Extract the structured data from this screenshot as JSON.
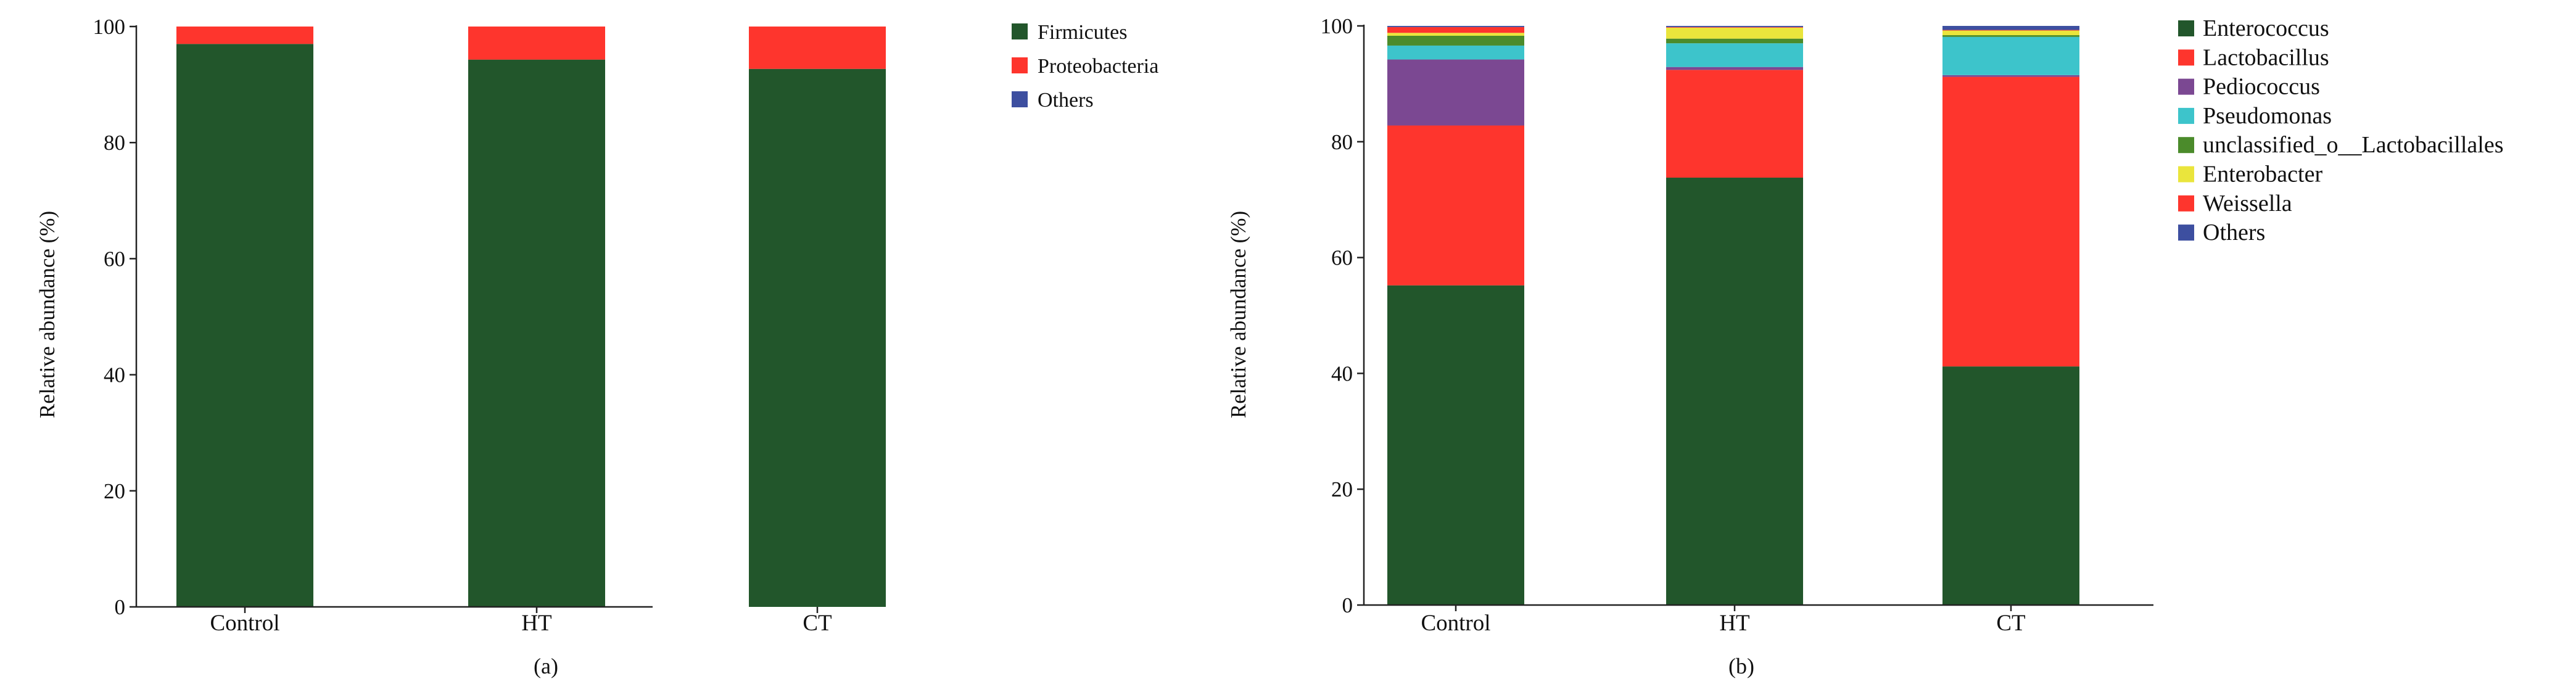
{
  "chart_data": [
    {
      "type": "bar",
      "stacked": true,
      "panel_label": "(a)",
      "title": "",
      "xlabel": "",
      "ylabel": "Relative abundance (%)",
      "ylim": [
        0,
        100
      ],
      "yticks": [
        0,
        20,
        40,
        60,
        80,
        100
      ],
      "categories": [
        "Control",
        "HT",
        "CT"
      ],
      "legend_position": "top-right",
      "series": [
        {
          "name": "Firmicutes",
          "color": "#22562b",
          "values": [
            97.0,
            94.3,
            92.7
          ]
        },
        {
          "name": "Proteobacteria",
          "color": "#fe352d",
          "values": [
            3.0,
            5.7,
            7.3
          ]
        },
        {
          "name": "Others",
          "color": "#3d4fa0",
          "values": [
            0.0,
            0.0,
            0.0
          ]
        }
      ]
    },
    {
      "type": "bar",
      "stacked": true,
      "panel_label": "(b)",
      "title": "",
      "xlabel": "",
      "ylabel": "Relative abundance (%)",
      "ylim": [
        0,
        100
      ],
      "yticks": [
        0,
        20,
        40,
        60,
        80,
        100
      ],
      "categories": [
        "Control",
        "HT",
        "CT"
      ],
      "legend_position": "top-right",
      "series": [
        {
          "name": "Enterococcus",
          "color": "#22562b",
          "values": [
            55.2,
            73.8,
            41.2
          ]
        },
        {
          "name": "Lactobacillus",
          "color": "#fe352d",
          "values": [
            27.6,
            18.6,
            50.0
          ]
        },
        {
          "name": "Pediococcus",
          "color": "#7b4892",
          "values": [
            11.4,
            0.5,
            0.3
          ]
        },
        {
          "name": "Pseudomonas",
          "color": "#3dc4cb",
          "values": [
            2.4,
            4.1,
            6.6
          ]
        },
        {
          "name": "unclassified_o__Lactobacillales",
          "color": "#4b8b2b",
          "values": [
            1.7,
            0.8,
            0.3
          ]
        },
        {
          "name": "Enterobacter",
          "color": "#eae53c",
          "values": [
            0.5,
            1.9,
            0.8
          ]
        },
        {
          "name": "Weissella",
          "color": "#fe352d",
          "values": [
            1.0,
            0.1,
            0.1
          ]
        },
        {
          "name": "Others",
          "color": "#3d4fa0",
          "values": [
            0.2,
            0.2,
            0.7
          ]
        }
      ]
    }
  ]
}
